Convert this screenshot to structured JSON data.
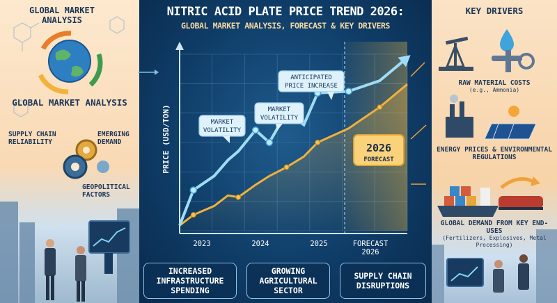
{
  "header": {
    "title": "NITRIC ACID PLATE PRICE TREND 2026:",
    "subtitle": "GLOBAL MARKET ANALYSIS, FORECAST & KEY DRIVERS"
  },
  "left_panel": {
    "title": "GLOBAL MARKET ANALYSIS",
    "heading": "GLOBAL MARKET ANALYSIS",
    "labels": {
      "supply_chain": "SUPPLY CHAIN RELIABILITY",
      "emerging_demand": "EMERGING DEMAND",
      "geopolitical": "GEOPOLITICAL FACTORS"
    }
  },
  "right_panel": {
    "title": "KEY DRIVERS",
    "drivers": [
      {
        "main": "RAW MATERIAL COSTS",
        "sub": "(e.g., Ammonia)"
      },
      {
        "main": "ENERGY PRICES & ENVIRONMENTAL REGULATIONS",
        "sub": ""
      },
      {
        "main": "GLOBAL DEMAND FROM KEY END-USES",
        "sub": "(Fertilizers, Explosives, Metal Processing)"
      }
    ]
  },
  "bottom_boxes": [
    "INCREASED INFRASTRUCTURE SPENDING",
    "GROWING AGRICULTURAL SECTOR",
    "SUPPLY CHAIN DISRUPTIONS"
  ],
  "colors": {
    "primary_line": "#9fdcf5",
    "secondary_line": "#f0b13c",
    "forecast_badge": "#f6c24b",
    "background": "#0f3d68"
  },
  "chart_data": {
    "type": "line",
    "ylabel": "PRICE (USD/TON)",
    "xlabel": "",
    "x_ticks": [
      "2023",
      "2024",
      "2025",
      "FORECAST 2026"
    ],
    "x": [
      2023.0,
      2023.2,
      2023.5,
      2023.7,
      2023.85,
      2024.1,
      2024.3,
      2024.55,
      2024.8,
      2025.0,
      2025.45,
      2025.9,
      2026.3
    ],
    "ylim": [
      0,
      100
    ],
    "series": [
      {
        "name": "",
        "values": [
          3,
          23,
          31,
          40,
          45,
          57,
          50,
          67,
          60,
          78,
          79,
          85,
          98
        ]
      },
      {
        "name": "",
        "values": [
          3,
          9,
          14,
          20,
          19,
          26,
          31,
          36,
          42,
          50,
          58,
          70,
          83
        ]
      }
    ],
    "annotations": [
      "ANTICIPATED PRICE INCREASE",
      "MARKET VOLATILITY",
      "MARKET VOLATILITY"
    ],
    "forecast_badge": {
      "year": "2026",
      "label": "FORECAST"
    }
  }
}
